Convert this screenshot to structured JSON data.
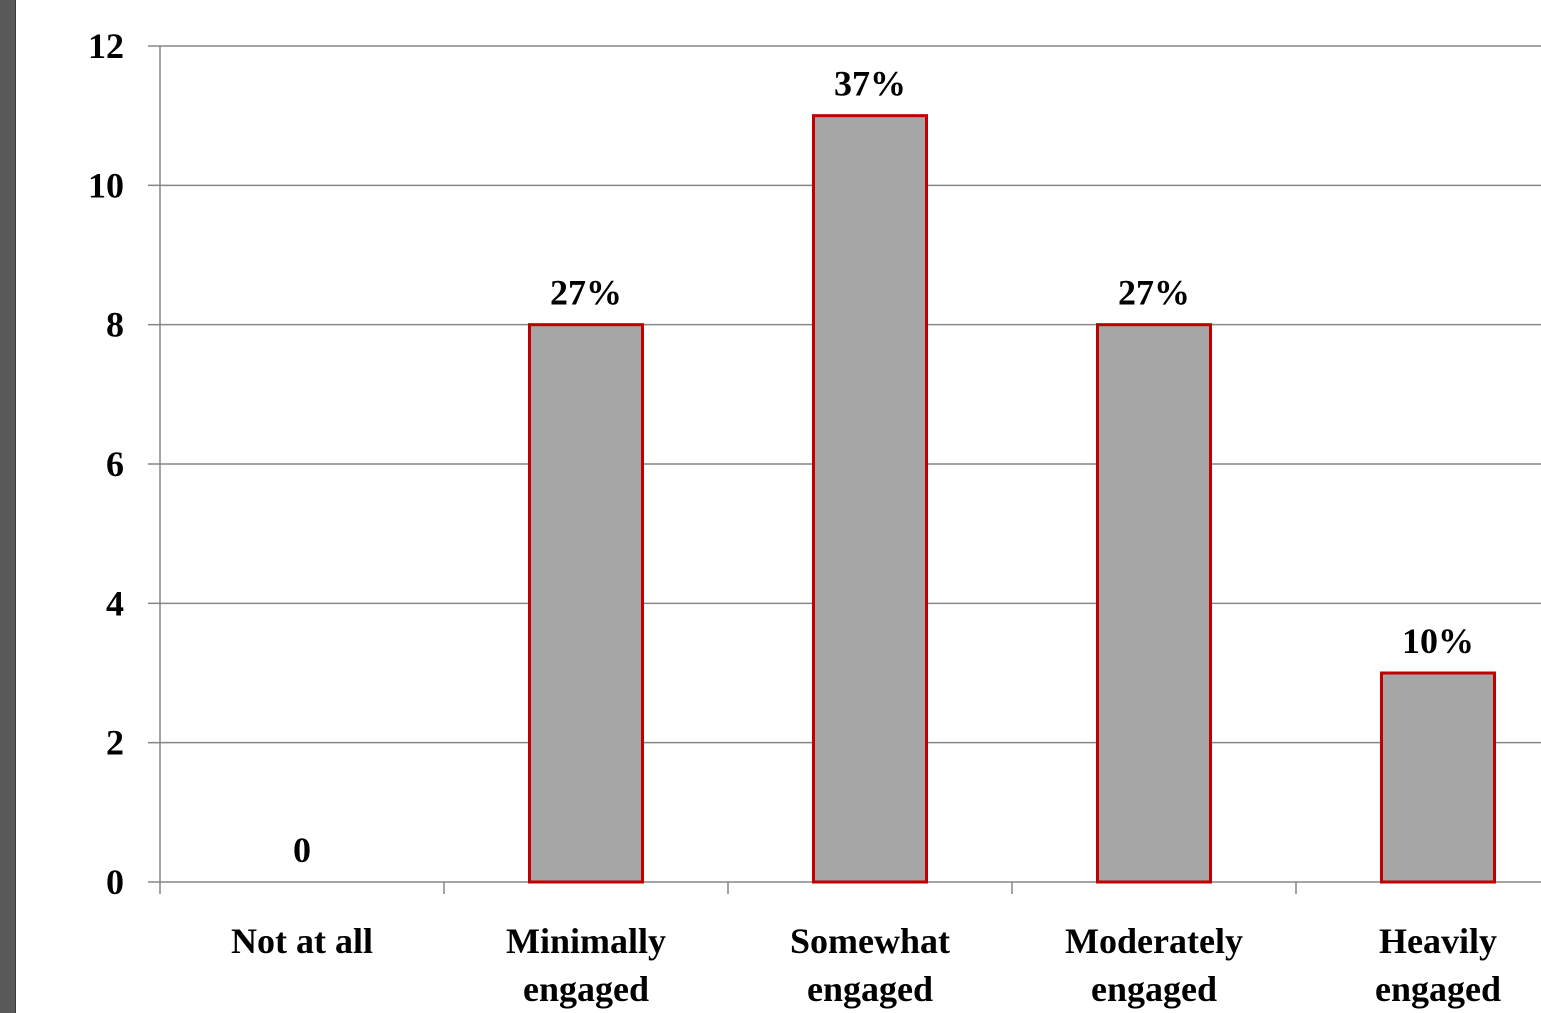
{
  "chart_data": {
    "type": "bar",
    "categories": [
      [
        "Not at all"
      ],
      [
        "Minimally",
        "engaged"
      ],
      [
        "Somewhat",
        "engaged"
      ],
      [
        "Moderately",
        "engaged"
      ],
      [
        "Heavily",
        "engaged"
      ]
    ],
    "values": [
      0,
      8,
      11,
      8,
      3
    ],
    "data_labels": [
      "0",
      "27%",
      "37%",
      "27%",
      "10%"
    ],
    "ylim": [
      0,
      12
    ],
    "yticks": [
      "0",
      "2",
      "4",
      "6",
      "8",
      "10",
      "12"
    ],
    "title": "",
    "xlabel": "",
    "ylabel": "",
    "grid": true,
    "legend": "none",
    "colors": {
      "bar_fill": "#a6a6a6",
      "bar_border": "#c00000",
      "gridline": "#868686",
      "axis": "#868686",
      "left_strip": "#595959"
    }
  }
}
